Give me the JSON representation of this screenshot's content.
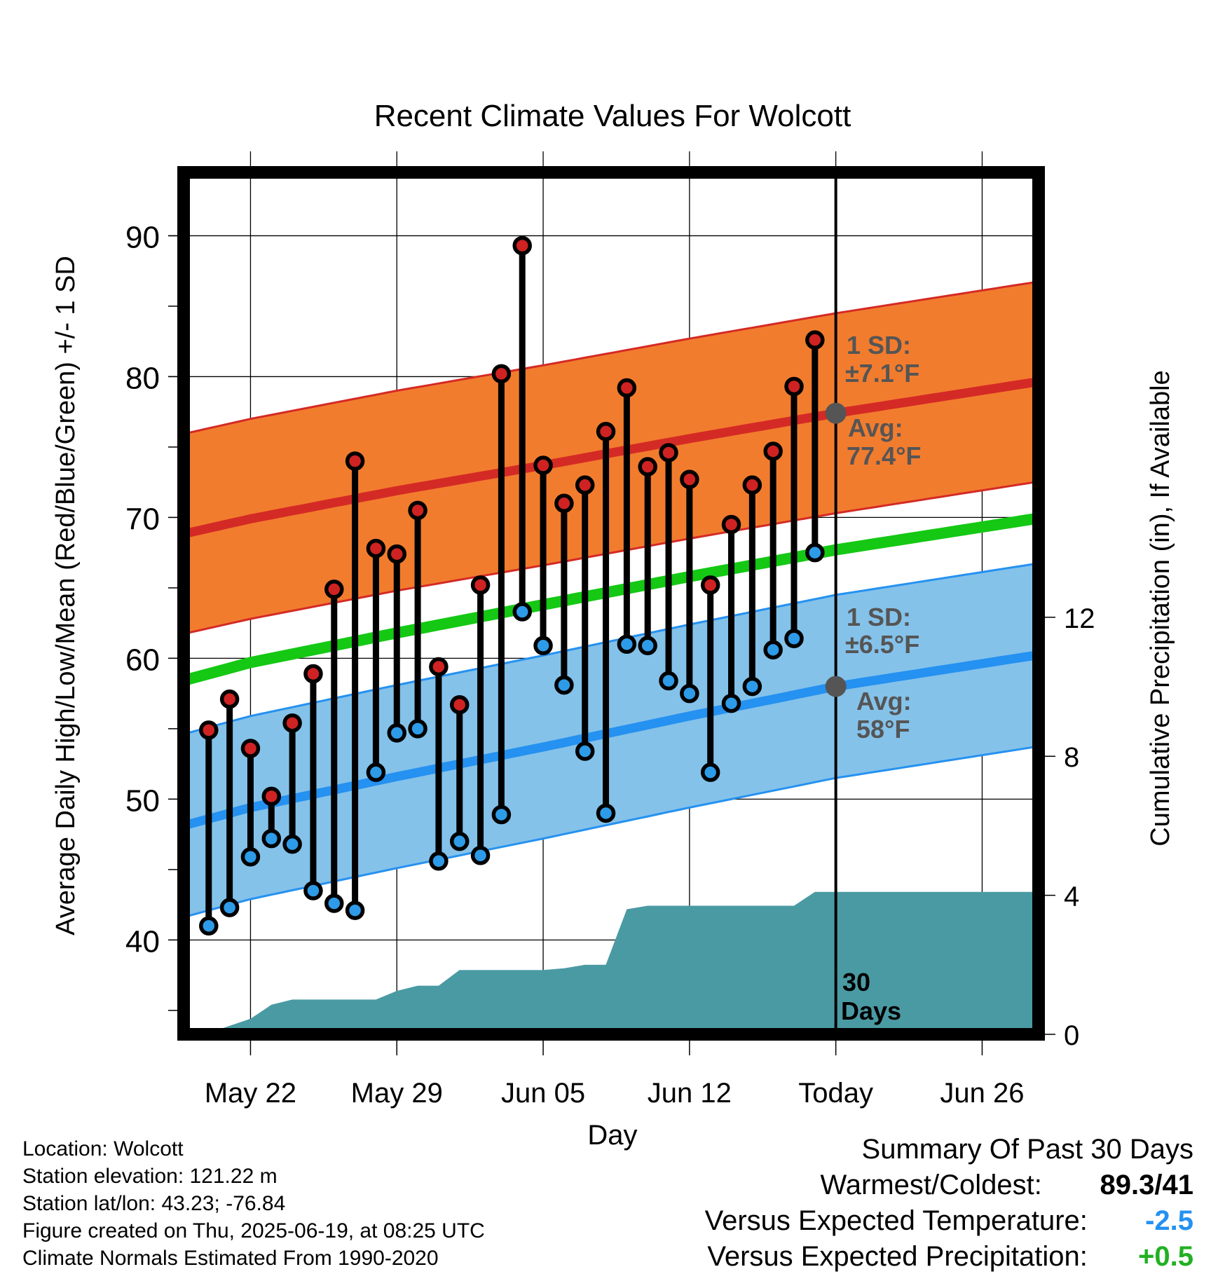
{
  "chart_data": {
    "type": "line",
    "title": "Recent Climate Values For Wolcott",
    "xlabel": "Day",
    "ylabel": "Average Daily High/Low/Mean (Red/Blue/Green) +/- 1 SD",
    "y2label": "Cumulative Precipitation (in), If Available",
    "x_ticks": [
      {
        "day": 0,
        "label": "May 22"
      },
      {
        "day": 7,
        "label": "May 29"
      },
      {
        "day": 14,
        "label": "Jun 05"
      },
      {
        "day": 21,
        "label": "Jun 12"
      },
      {
        "day": 28,
        "label": "Today"
      },
      {
        "day": 35,
        "label": "Jun 26"
      }
    ],
    "x_range_days_from_may22": [
      -3.2,
      37.7
    ],
    "y_ticks": [
      40,
      50,
      60,
      70,
      80,
      90
    ],
    "ylim": [
      33.3,
      94.5
    ],
    "y2_ticks": [
      0,
      4,
      8,
      12
    ],
    "y2lim": [
      0,
      24.8
    ],
    "grid": true,
    "today_day": 28,
    "days": [
      -2,
      -1,
      0,
      1,
      2,
      3,
      4,
      5,
      6,
      7,
      8,
      9,
      10,
      11,
      12,
      13,
      14,
      15,
      16,
      17,
      18,
      19,
      20,
      21,
      22,
      23,
      24,
      25,
      26,
      27
    ],
    "daily_high": [
      54.9,
      57.1,
      53.6,
      50.2,
      55.4,
      58.9,
      64.9,
      74.0,
      67.8,
      67.4,
      70.5,
      59.4,
      56.7,
      65.2,
      80.2,
      89.3,
      73.7,
      71.0,
      72.3,
      76.1,
      79.2,
      73.6,
      74.6,
      72.7,
      65.2,
      69.5,
      72.3,
      74.7,
      79.3,
      82.6
    ],
    "daily_low": [
      41.0,
      42.3,
      45.9,
      47.2,
      46.8,
      43.5,
      42.6,
      42.1,
      51.9,
      54.7,
      55.0,
      45.6,
      47.0,
      46.0,
      48.9,
      63.3,
      60.9,
      58.1,
      53.4,
      49.0,
      61.0,
      60.9,
      58.4,
      57.5,
      51.9,
      56.8,
      58.0,
      60.6,
      61.4,
      67.5
    ],
    "normal_high": {
      "day": [
        -3,
        0,
        7,
        14,
        21,
        28,
        37.5
      ],
      "avg": [
        68.9,
        69.9,
        71.9,
        73.7,
        75.6,
        77.4,
        79.6
      ],
      "sd": 7.1
    },
    "normal_low": {
      "day": [
        -3,
        0,
        7,
        14,
        21,
        28,
        37.5
      ],
      "avg": [
        48.2,
        49.4,
        51.6,
        53.7,
        55.9,
        58.0,
        60.2
      ],
      "sd": 6.5
    },
    "normal_mean": {
      "day": [
        -3,
        0,
        7,
        14,
        21,
        28,
        37.5
      ],
      "avg": [
        58.5,
        59.7,
        61.8,
        63.8,
        65.8,
        67.7,
        69.9
      ]
    },
    "precip_cumulative": {
      "day": [
        -2.2,
        0,
        1,
        2,
        3,
        4,
        5,
        6,
        7,
        8,
        9,
        10,
        11,
        12,
        13,
        14,
        15,
        16,
        17,
        18,
        19,
        20,
        21,
        22,
        23,
        24,
        25,
        26,
        27,
        28,
        37.5
      ],
      "value": [
        0,
        0.45,
        0.85,
        1.0,
        1.0,
        1.0,
        1.0,
        1.0,
        1.25,
        1.4,
        1.4,
        1.85,
        1.85,
        1.85,
        1.85,
        1.85,
        1.9,
        2.0,
        2.0,
        3.6,
        3.7,
        3.7,
        3.7,
        3.7,
        3.7,
        3.7,
        3.7,
        3.7,
        4.1,
        4.1,
        4.1
      ]
    },
    "colors": {
      "high_band": "#f27c2e",
      "high_band_edge": "#d42a25",
      "high_line": "#d42a25",
      "low_band": "#84c2ea",
      "low_band_edge": "#2591f0",
      "low_line": "#2591f0",
      "mean_line": "#14c814",
      "precip": "#4a9aa3",
      "high_marker": "#cf2222",
      "low_marker": "#2d9be8",
      "annotation": "#555555"
    },
    "annotations": {
      "high_sd_label": "1 SD:",
      "high_sd_value": "±7.1°F",
      "high_avg_label": "Avg:",
      "high_avg_value": "77.4°F",
      "low_sd_label": "1 SD:",
      "low_sd_value": "±6.5°F",
      "low_avg_label": "Avg:",
      "low_avg_value": "58°F",
      "window_count": "30",
      "window_unit": "Days"
    }
  },
  "info": {
    "location": "Location: Wolcott",
    "elevation": "Station elevation: 121.22 m",
    "latlon": "Station lat/lon: 43.23; -76.84",
    "created": "Figure created on Thu, 2025-06-19, at 08:25 UTC",
    "normals": "Climate Normals Estimated From 1990-2020"
  },
  "summary": {
    "title": "Summary Of Past 30 Days",
    "warm_cold_label": "Warmest/Coldest:",
    "warm_cold_value": "89.3/41",
    "temp_label": "Versus Expected Temperature:",
    "temp_value": "-2.5",
    "temp_color": "#2591f0",
    "precip_label": "Versus Expected Precipitation:",
    "precip_value": "+0.5",
    "precip_color": "#22b022"
  }
}
